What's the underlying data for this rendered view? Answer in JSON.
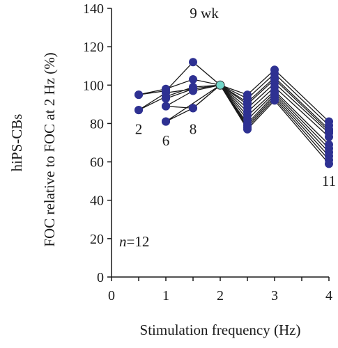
{
  "chart_data": {
    "type": "line",
    "title": "9 wk",
    "row_label": "hiPS-CBs",
    "xlabel": "Stimulation frequency (Hz)",
    "ylabel": "FOC relative to FOC at 2 Hz (%)",
    "xlim": [
      0,
      4
    ],
    "ylim": [
      0,
      140
    ],
    "xticks": [
      "0",
      "1",
      "2",
      "3",
      "4"
    ],
    "yticks": [
      "0",
      "20",
      "40",
      "60",
      "80",
      "100",
      "120",
      "140"
    ],
    "grid": false,
    "x": [
      0.5,
      1,
      1.5,
      2,
      2.5,
      3,
      4
    ],
    "n_label": {
      "italic": "n",
      "rest": "=12"
    },
    "point_labels": [
      {
        "text": "2",
        "x": 0.5,
        "y": 77
      },
      {
        "text": "6",
        "x": 1,
        "y": 71
      },
      {
        "text": "8",
        "x": 1.5,
        "y": 77
      },
      {
        "text": "11",
        "x": 4,
        "y": 50
      }
    ],
    "colors": {
      "marker": "#2e3192",
      "reference": "#72d6c9",
      "line": "#1a1a1a"
    },
    "series": [
      {
        "values": [
          95,
          97,
          112,
          100,
          95,
          108,
          81
        ]
      },
      {
        "values": [
          95,
          98,
          103,
          100,
          93,
          106,
          79
        ]
      },
      {
        "values": [
          87,
          96,
          98,
          100,
          91,
          104,
          77
        ]
      },
      {
        "values": [
          87,
          94,
          99,
          100,
          90,
          103,
          76
        ]
      },
      {
        "values": [
          null,
          93,
          98,
          100,
          88,
          101,
          75
        ]
      },
      {
        "values": [
          null,
          89,
          97,
          100,
          86,
          99,
          73
        ]
      },
      {
        "values": [
          null,
          89,
          88,
          100,
          84,
          97,
          69
        ]
      },
      {
        "values": [
          null,
          81,
          88,
          100,
          82,
          96,
          67
        ]
      },
      {
        "values": [
          null,
          81,
          null,
          100,
          80,
          95,
          65
        ]
      },
      {
        "values": [
          null,
          null,
          null,
          100,
          79,
          94,
          63
        ]
      },
      {
        "values": [
          null,
          null,
          null,
          100,
          78,
          93,
          61
        ]
      },
      {
        "values": [
          null,
          null,
          null,
          100,
          77,
          92,
          59
        ]
      }
    ]
  }
}
